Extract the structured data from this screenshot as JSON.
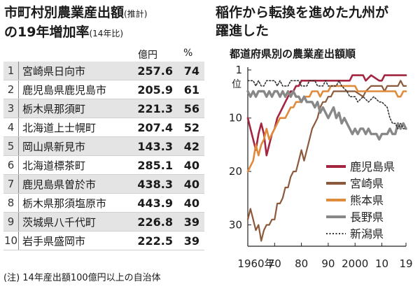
{
  "left": {
    "title_line1": "市町村別農業産出額",
    "title_line1_small": "(推計)",
    "title_line2": "の19年増加率",
    "title_line2_small": "(14年比)",
    "col_yen": "億円",
    "col_pct": "%",
    "rows": [
      {
        "rank": "1",
        "name": "宮崎県日向市",
        "value": "257.6",
        "pct": "74"
      },
      {
        "rank": "2",
        "name": "鹿児島県鹿児島市",
        "value": "205.9",
        "pct": "61"
      },
      {
        "rank": "3",
        "name": "栃木県那須町",
        "value": "221.3",
        "pct": "56"
      },
      {
        "rank": "4",
        "name": "北海道上士幌町",
        "value": "207.4",
        "pct": "52"
      },
      {
        "rank": "5",
        "name": "岡山県新見市",
        "value": "143.3",
        "pct": "42"
      },
      {
        "rank": "6",
        "name": "北海道標茶町",
        "value": "285.1",
        "pct": "40"
      },
      {
        "rank": "7",
        "name": "鹿児島県曽於市",
        "value": "438.3",
        "pct": "40"
      },
      {
        "rank": "8",
        "name": "栃木県那須塩原市",
        "value": "443.9",
        "pct": "40"
      },
      {
        "rank": "9",
        "name": "茨城県八千代町",
        "value": "226.8",
        "pct": "39"
      },
      {
        "rank": "10",
        "name": "岩手県盛岡市",
        "value": "222.5",
        "pct": "39"
      }
    ],
    "note": "(注) 14年産出額100億円以上の自治体"
  },
  "right": {
    "title_line1": "稲作から転換を進めた九州が",
    "title_line2": "躍進した",
    "subtitle": "都道府県別の農業産出額順"
  },
  "chart_data": {
    "type": "line",
    "title": "都道府県別の農業産出額順",
    "x_ticks": [
      "1960年",
      "70",
      "80",
      "90",
      "2000",
      "10",
      "19"
    ],
    "x_tick_values": [
      1960,
      1970,
      1980,
      1990,
      2000,
      2010,
      2019
    ],
    "xlim": [
      1960,
      2019
    ],
    "y_ticks": [
      "1",
      "10",
      "20",
      "30"
    ],
    "y_tick_values": [
      1,
      10,
      20,
      30
    ],
    "y_unit_label": "位",
    "ylim": [
      1,
      34
    ],
    "y_inverted": true,
    "legend_position": "bottom-right",
    "series": [
      {
        "name": "鹿児島県",
        "color": "#a3253f",
        "style": "solid",
        "points": [
          [
            1960,
            10
          ],
          [
            1961,
            12
          ],
          [
            1962,
            14
          ],
          [
            1963,
            16
          ],
          [
            1964,
            13
          ],
          [
            1965,
            11
          ],
          [
            1966,
            13
          ],
          [
            1967,
            17
          ],
          [
            1968,
            15
          ],
          [
            1969,
            13
          ],
          [
            1970,
            12
          ],
          [
            1971,
            10
          ],
          [
            1972,
            9
          ],
          [
            1973,
            8
          ],
          [
            1974,
            7
          ],
          [
            1975,
            6
          ],
          [
            1976,
            5
          ],
          [
            1977,
            5
          ],
          [
            1978,
            4
          ],
          [
            1979,
            4
          ],
          [
            1980,
            3
          ],
          [
            1983,
            3
          ],
          [
            1985,
            3
          ],
          [
            1990,
            3
          ],
          [
            1995,
            3
          ],
          [
            1998,
            3
          ],
          [
            1999,
            2
          ],
          [
            2003,
            2
          ],
          [
            2004,
            3
          ],
          [
            2006,
            2
          ],
          [
            2009,
            3
          ],
          [
            2010,
            3
          ],
          [
            2011,
            2
          ],
          [
            2017,
            2
          ],
          [
            2018,
            2
          ],
          [
            2019,
            2
          ]
        ]
      },
      {
        "name": "宮崎県",
        "color": "#8b5a3c",
        "style": "solid",
        "points": [
          [
            1960,
            29
          ],
          [
            1961,
            27
          ],
          [
            1962,
            29
          ],
          [
            1963,
            31
          ],
          [
            1964,
            30
          ],
          [
            1965,
            33
          ],
          [
            1966,
            31
          ],
          [
            1967,
            30
          ],
          [
            1968,
            30
          ],
          [
            1969,
            29
          ],
          [
            1970,
            29
          ],
          [
            1971,
            26
          ],
          [
            1972,
            26
          ],
          [
            1973,
            25
          ],
          [
            1974,
            23
          ],
          [
            1975,
            23
          ],
          [
            1976,
            21
          ],
          [
            1977,
            20
          ],
          [
            1978,
            20
          ],
          [
            1979,
            18
          ],
          [
            1980,
            16
          ],
          [
            1981,
            18
          ],
          [
            1982,
            16
          ],
          [
            1983,
            14
          ],
          [
            1984,
            12
          ],
          [
            1985,
            11
          ],
          [
            1986,
            10
          ],
          [
            1987,
            8
          ],
          [
            1988,
            7
          ],
          [
            1989,
            7
          ],
          [
            1990,
            6
          ],
          [
            1991,
            6
          ],
          [
            1992,
            5
          ],
          [
            1995,
            5
          ],
          [
            2000,
            5
          ],
          [
            2003,
            6
          ],
          [
            2004,
            5
          ],
          [
            2006,
            4
          ],
          [
            2010,
            4
          ],
          [
            2011,
            5
          ],
          [
            2012,
            4
          ],
          [
            2015,
            4
          ],
          [
            2016,
            4
          ],
          [
            2017,
            3
          ],
          [
            2018,
            4
          ],
          [
            2019,
            4
          ]
        ]
      },
      {
        "name": "熊本県",
        "color": "#e08a3c",
        "style": "solid",
        "points": [
          [
            1960,
            20
          ],
          [
            1961,
            19
          ],
          [
            1962,
            18
          ],
          [
            1963,
            15
          ],
          [
            1964,
            17
          ],
          [
            1965,
            15
          ],
          [
            1966,
            14
          ],
          [
            1967,
            12
          ],
          [
            1968,
            14
          ],
          [
            1969,
            13
          ],
          [
            1970,
            12
          ],
          [
            1971,
            11
          ],
          [
            1972,
            10
          ],
          [
            1973,
            10
          ],
          [
            1974,
            10
          ],
          [
            1975,
            9
          ],
          [
            1976,
            8
          ],
          [
            1977,
            8
          ],
          [
            1978,
            7
          ],
          [
            1979,
            7
          ],
          [
            1980,
            7
          ],
          [
            1981,
            6
          ],
          [
            1982,
            6
          ],
          [
            1983,
            6
          ],
          [
            1984,
            5
          ],
          [
            1985,
            5
          ],
          [
            1986,
            5
          ],
          [
            1987,
            6
          ],
          [
            1988,
            5
          ],
          [
            1989,
            5
          ],
          [
            1990,
            5
          ],
          [
            1991,
            4
          ],
          [
            1995,
            4
          ],
          [
            2000,
            4
          ],
          [
            2001,
            5
          ],
          [
            2005,
            5
          ],
          [
            2010,
            5
          ],
          [
            2014,
            5
          ],
          [
            2015,
            5
          ],
          [
            2016,
            6
          ],
          [
            2017,
            6
          ],
          [
            2018,
            5
          ],
          [
            2019,
            5
          ]
        ]
      },
      {
        "name": "長野県",
        "color": "#888888",
        "style": "solid",
        "points": [
          [
            1960,
            5
          ],
          [
            1961,
            6
          ],
          [
            1962,
            5
          ],
          [
            1963,
            6
          ],
          [
            1964,
            5
          ],
          [
            1965,
            5
          ],
          [
            1966,
            5
          ],
          [
            1967,
            6
          ],
          [
            1968,
            5
          ],
          [
            1969,
            6
          ],
          [
            1970,
            5
          ],
          [
            1971,
            5
          ],
          [
            1972,
            6
          ],
          [
            1973,
            5
          ],
          [
            1974,
            6
          ],
          [
            1975,
            5
          ],
          [
            1976,
            6
          ],
          [
            1977,
            5
          ],
          [
            1978,
            6
          ],
          [
            1979,
            6
          ],
          [
            1980,
            7
          ],
          [
            1981,
            6
          ],
          [
            1982,
            7
          ],
          [
            1983,
            7
          ],
          [
            1984,
            7
          ],
          [
            1985,
            8
          ],
          [
            1986,
            7
          ],
          [
            1987,
            9
          ],
          [
            1988,
            8
          ],
          [
            1989,
            9
          ],
          [
            1990,
            10
          ],
          [
            1991,
            9
          ],
          [
            1992,
            8
          ],
          [
            1993,
            10
          ],
          [
            1994,
            9
          ],
          [
            1995,
            11
          ],
          [
            1996,
            10
          ],
          [
            1997,
            11
          ],
          [
            1998,
            12
          ],
          [
            1999,
            13
          ],
          [
            2000,
            12
          ],
          [
            2001,
            13
          ],
          [
            2002,
            12
          ],
          [
            2003,
            12
          ],
          [
            2004,
            13
          ],
          [
            2005,
            12
          ],
          [
            2006,
            13
          ],
          [
            2007,
            13
          ],
          [
            2008,
            13
          ],
          [
            2009,
            14
          ],
          [
            2010,
            13
          ],
          [
            2011,
            13
          ],
          [
            2012,
            13
          ],
          [
            2013,
            12
          ],
          [
            2014,
            13
          ],
          [
            2015,
            13
          ],
          [
            2016,
            11
          ],
          [
            2017,
            12
          ],
          [
            2018,
            11
          ],
          [
            2019,
            12
          ]
        ]
      },
      {
        "name": "新潟県",
        "color": "#333333",
        "style": "dotted",
        "points": [
          [
            1960,
            3
          ],
          [
            1961,
            3
          ],
          [
            1962,
            3
          ],
          [
            1963,
            4
          ],
          [
            1964,
            3
          ],
          [
            1965,
            4
          ],
          [
            1966,
            4
          ],
          [
            1967,
            3
          ],
          [
            1968,
            3
          ],
          [
            1969,
            3
          ],
          [
            1970,
            3
          ],
          [
            1971,
            4
          ],
          [
            1972,
            3
          ],
          [
            1973,
            4
          ],
          [
            1974,
            4
          ],
          [
            1975,
            4
          ],
          [
            1976,
            3
          ],
          [
            1977,
            3
          ],
          [
            1978,
            3
          ],
          [
            1979,
            3
          ],
          [
            1980,
            4
          ],
          [
            1982,
            4
          ],
          [
            1983,
            3
          ],
          [
            1985,
            3
          ],
          [
            1986,
            4
          ],
          [
            1988,
            4
          ],
          [
            1989,
            3
          ],
          [
            1990,
            4
          ],
          [
            1993,
            4
          ],
          [
            1994,
            3
          ],
          [
            1995,
            4
          ],
          [
            1997,
            5
          ],
          [
            1998,
            6
          ],
          [
            2000,
            6
          ],
          [
            2001,
            7
          ],
          [
            2003,
            6
          ],
          [
            2005,
            7
          ],
          [
            2007,
            6
          ],
          [
            2009,
            7
          ],
          [
            2010,
            7
          ],
          [
            2012,
            8
          ],
          [
            2013,
            10
          ],
          [
            2014,
            11
          ],
          [
            2015,
            11
          ],
          [
            2016,
            12
          ],
          [
            2017,
            11
          ],
          [
            2018,
            12
          ],
          [
            2019,
            12
          ]
        ]
      }
    ]
  }
}
